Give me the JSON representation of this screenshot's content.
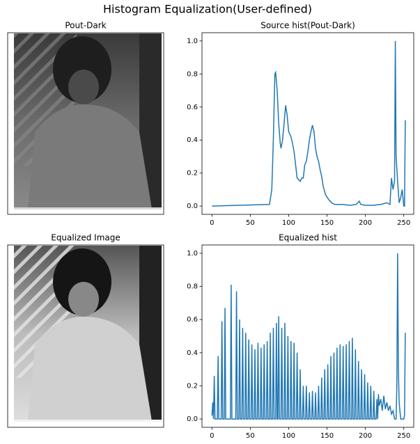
{
  "title": "Histogram Equalization(User-defined)",
  "images": [
    {
      "title": "Pout-Dark"
    },
    {
      "title": "Equalized Image"
    }
  ],
  "chart_data": [
    {
      "type": "line",
      "title": "Source hist(Pout-Dark)",
      "x": [
        0,
        75,
        78,
        80,
        82,
        83,
        85,
        87,
        89,
        90,
        92,
        94,
        96,
        98,
        100,
        103,
        105,
        107,
        109,
        111,
        113,
        115,
        117,
        119,
        121,
        123,
        125,
        127,
        129,
        131,
        133,
        135,
        137,
        139,
        141,
        143,
        145,
        148,
        152,
        156,
        160,
        170,
        180,
        188,
        192,
        194,
        200,
        210,
        220,
        228,
        232,
        234,
        236,
        238,
        239,
        240,
        242,
        244,
        246,
        248,
        250,
        251,
        252
      ],
      "series": [
        {
          "color": "#1f77b4",
          "values": [
            0,
            0.01,
            0.1,
            0.4,
            0.8,
            0.81,
            0.7,
            0.5,
            0.38,
            0.35,
            0.4,
            0.5,
            0.61,
            0.55,
            0.45,
            0.42,
            0.38,
            0.33,
            0.25,
            0.17,
            0.16,
            0.15,
            0.17,
            0.17,
            0.25,
            0.27,
            0.33,
            0.4,
            0.45,
            0.49,
            0.45,
            0.35,
            0.3,
            0.27,
            0.22,
            0.18,
            0.12,
            0.07,
            0.04,
            0.02,
            0.01,
            0.01,
            0.005,
            0.01,
            0.03,
            0.01,
            0.005,
            0.005,
            0.01,
            0.02,
            0.01,
            0.17,
            0.1,
            0.15,
            1.0,
            0.3,
            0.15,
            0.02,
            0.05,
            0.1,
            0,
            0,
            0.52
          ]
        }
      ],
      "xlim": [
        -13,
        263
      ],
      "ylim": [
        -0.05,
        1.05
      ],
      "xticks": [
        0,
        50,
        100,
        150,
        200,
        250
      ],
      "yticks": [
        {
          "value": 0,
          "label": "0.0"
        },
        0.2,
        0.4,
        0.6,
        0.8,
        {
          "value": 1,
          "label": "1.0"
        }
      ]
    },
    {
      "type": "line",
      "title": "Equalized hist",
      "x": [
        0,
        1,
        2,
        3,
        4,
        7,
        8,
        9,
        12,
        13,
        14,
        16,
        17,
        18,
        24,
        25,
        26,
        31,
        32,
        33,
        35,
        36,
        37,
        39,
        40,
        41,
        43,
        44,
        45,
        47,
        48,
        49,
        51,
        52,
        53,
        55,
        56,
        57,
        59,
        60,
        61,
        63,
        64,
        65,
        67,
        68,
        69,
        71,
        72,
        73,
        75,
        76,
        77,
        79,
        80,
        81,
        83,
        84,
        85,
        86,
        87,
        88,
        90,
        91,
        92,
        94,
        95,
        96,
        98,
        99,
        100,
        102,
        103,
        104,
        106,
        107,
        108,
        110,
        111,
        112,
        114,
        115,
        116,
        118,
        119,
        120,
        122,
        123,
        124,
        126,
        127,
        128,
        130,
        131,
        132,
        134,
        135,
        136,
        138,
        139,
        140,
        142,
        143,
        144,
        146,
        147,
        148,
        150,
        151,
        152,
        154,
        155,
        156,
        158,
        159,
        160,
        162,
        163,
        164,
        166,
        167,
        168,
        170,
        171,
        172,
        174,
        175,
        176,
        178,
        179,
        180,
        182,
        183,
        184,
        186,
        187,
        188,
        190,
        191,
        192,
        194,
        195,
        196,
        198,
        199,
        200,
        202,
        203,
        204,
        206,
        207,
        208,
        210,
        211,
        212,
        214,
        215,
        216,
        217,
        218,
        220,
        222,
        224,
        226,
        228,
        230,
        232,
        234,
        236,
        238,
        240,
        241,
        242,
        243,
        244,
        246,
        248,
        250,
        251,
        252
      ],
      "series": [
        {
          "color": "#1f77b4",
          "values": [
            0.02,
            0.1,
            0,
            0.26,
            0,
            0,
            0.38,
            0,
            0,
            0.59,
            0,
            0,
            0.67,
            0,
            0,
            0.81,
            0,
            0,
            0.77,
            0,
            0,
            0.6,
            0,
            0,
            0.55,
            0,
            0,
            0.52,
            0,
            0,
            0.48,
            0,
            0,
            0.45,
            0,
            0,
            0.42,
            0,
            0,
            0.46,
            0,
            0,
            0.43,
            0,
            0,
            0.45,
            0,
            0,
            0.47,
            0,
            0,
            0.52,
            0,
            0,
            0.55,
            0,
            0,
            0.58,
            0,
            0,
            0.62,
            0,
            0,
            0.55,
            0,
            0,
            0.58,
            0,
            0,
            0.5,
            0,
            0,
            0.47,
            0,
            0,
            0.46,
            0,
            0,
            0.4,
            0,
            0,
            0.3,
            0,
            0,
            0.2,
            0,
            0,
            0.2,
            0,
            0,
            0.16,
            0,
            0,
            0.17,
            0,
            0,
            0.16,
            0,
            0,
            0.2,
            0,
            0,
            0.25,
            0,
            0,
            0.3,
            0,
            0,
            0.33,
            0,
            0,
            0.38,
            0,
            0,
            0.4,
            0,
            0,
            0.43,
            0,
            0,
            0.45,
            0,
            0,
            0.44,
            0,
            0,
            0.45,
            0,
            0,
            0.47,
            0,
            0,
            0.49,
            0,
            0,
            0.42,
            0,
            0,
            0.35,
            0,
            0,
            0.3,
            0,
            0,
            0.27,
            0,
            0,
            0.22,
            0,
            0,
            0.2,
            0,
            0,
            0.17,
            0,
            0,
            0.12,
            0,
            0.15,
            0.08,
            0.12,
            0.05,
            0.14,
            0.06,
            0.1,
            0.05,
            0.08,
            0.03,
            0.05,
            0,
            0,
            0.2,
            1.0,
            0.3,
            0.1,
            0,
            0,
            0,
            0.02,
            0.52
          ]
        }
      ],
      "xlim": [
        -13,
        263
      ],
      "ylim": [
        -0.05,
        1.05
      ],
      "xticks": [
        0,
        50,
        100,
        150,
        200,
        250
      ],
      "yticks": [
        {
          "value": 0,
          "label": "0.0"
        },
        0.2,
        0.4,
        0.6,
        0.8,
        {
          "value": 1,
          "label": "1.0"
        }
      ]
    }
  ]
}
